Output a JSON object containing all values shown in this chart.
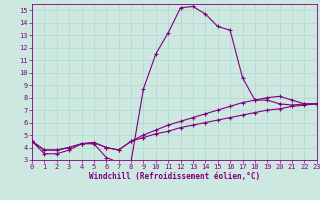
{
  "x": [
    0,
    1,
    2,
    3,
    4,
    5,
    6,
    7,
    8,
    9,
    10,
    11,
    12,
    13,
    14,
    15,
    16,
    17,
    18,
    19,
    20,
    21,
    22,
    23
  ],
  "line1": [
    4.5,
    3.5,
    3.5,
    3.8,
    4.3,
    4.3,
    3.2,
    2.8,
    2.9,
    8.7,
    11.5,
    13.2,
    15.2,
    15.3,
    14.7,
    13.7,
    13.4,
    9.6,
    7.8,
    7.8,
    7.5,
    7.4,
    7.5,
    7.5
  ],
  "line2": [
    4.5,
    3.8,
    3.8,
    4.0,
    4.3,
    4.4,
    4.0,
    3.8,
    4.5,
    5.0,
    5.4,
    5.8,
    6.1,
    6.4,
    6.7,
    7.0,
    7.3,
    7.6,
    7.8,
    8.0,
    8.1,
    7.8,
    7.5,
    7.5
  ],
  "line3": [
    4.5,
    3.8,
    3.8,
    4.0,
    4.3,
    4.4,
    4.0,
    3.8,
    4.5,
    4.8,
    5.1,
    5.3,
    5.6,
    5.8,
    6.0,
    6.2,
    6.4,
    6.6,
    6.8,
    7.0,
    7.1,
    7.3,
    7.4,
    7.5
  ],
  "color": "#800080",
  "bg_color": "#cce8e0",
  "grid_color": "#b0d8cc",
  "xlabel": "Windchill (Refroidissement éolien,°C)",
  "xlim": [
    0,
    23
  ],
  "ylim": [
    3,
    15.5
  ],
  "yticks": [
    3,
    4,
    5,
    6,
    7,
    8,
    9,
    10,
    11,
    12,
    13,
    14,
    15
  ],
  "xticks": [
    0,
    1,
    2,
    3,
    4,
    5,
    6,
    7,
    8,
    9,
    10,
    11,
    12,
    13,
    14,
    15,
    16,
    17,
    18,
    19,
    20,
    21,
    22,
    23
  ],
  "xlabel_fontsize": 5.5,
  "tick_fontsize": 5.0
}
